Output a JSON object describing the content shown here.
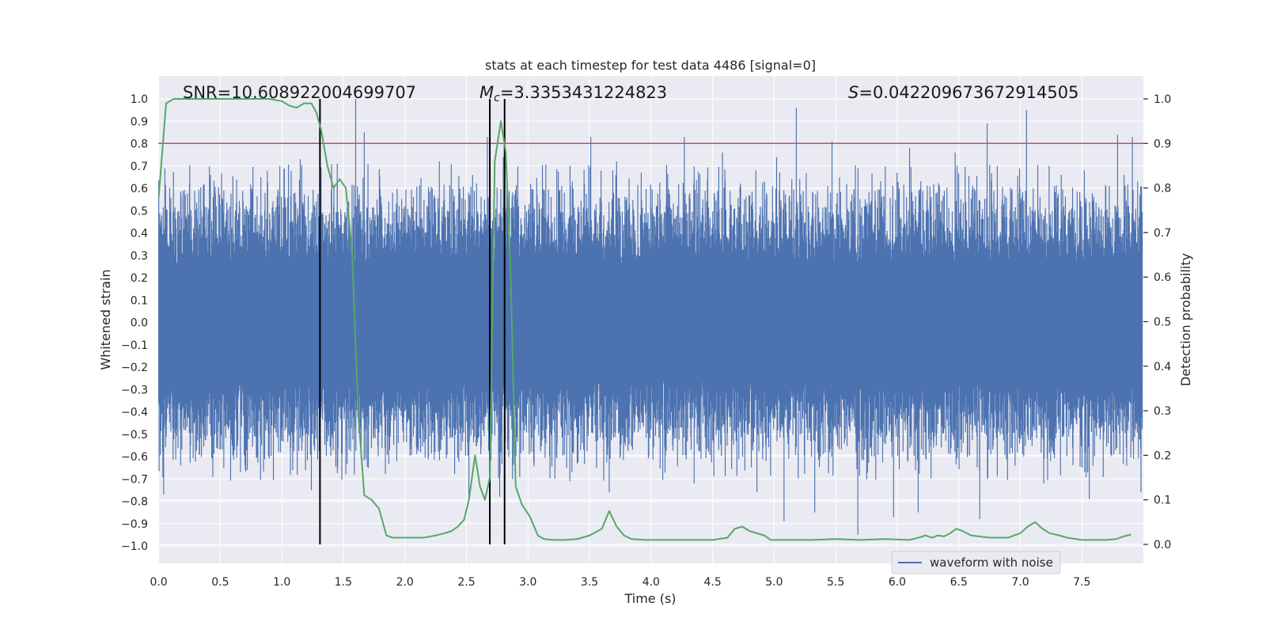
{
  "chart_data": {
    "type": "line",
    "title": "stats at each timestep for test data 4486 [signal=0]",
    "xlabel": "Time (s)",
    "ylabel_left": "Whitened strain",
    "ylabel_right": "Detection probability",
    "xlim": [
      0.0,
      8.0
    ],
    "ylim_left": [
      -1.05,
      1.05
    ],
    "ylim_right": [
      -0.045,
      1.045
    ],
    "x_ticks": [
      0.0,
      0.5,
      1.0,
      1.5,
      2.0,
      2.5,
      3.0,
      3.5,
      4.0,
      4.5,
      5.0,
      5.5,
      6.0,
      6.5,
      7.0,
      7.5
    ],
    "x_tick_labels": [
      "0.0",
      "0.5",
      "1.0",
      "1.5",
      "2.0",
      "2.5",
      "3.0",
      "3.5",
      "4.0",
      "4.5",
      "5.0",
      "5.5",
      "6.0",
      "6.5",
      "7.0",
      "7.5"
    ],
    "y_left_ticks": [
      -1.0,
      -0.9,
      -0.8,
      -0.7,
      -0.6,
      -0.5,
      -0.4,
      -0.3,
      -0.2,
      -0.1,
      0.0,
      0.1,
      0.2,
      0.3,
      0.4,
      0.5,
      0.6,
      0.7,
      0.8,
      0.9,
      1.0
    ],
    "y_left_tick_labels": [
      "−1.0",
      "−0.9",
      "−0.8",
      "−0.7",
      "−0.6",
      "−0.5",
      "−0.4",
      "−0.3",
      "−0.2",
      "−0.1",
      "0.0",
      "0.1",
      "0.2",
      "0.3",
      "0.4",
      "0.5",
      "0.6",
      "0.7",
      "0.8",
      "0.9",
      "1.0"
    ],
    "y_right_ticks": [
      0.0,
      0.1,
      0.2,
      0.3,
      0.4,
      0.5,
      0.6,
      0.7,
      0.8,
      0.9,
      1.0
    ],
    "y_right_tick_labels": [
      "0.0",
      "0.1",
      "0.2",
      "0.3",
      "0.4",
      "0.5",
      "0.6",
      "0.7",
      "0.8",
      "0.9",
      "1.0"
    ],
    "grid": true,
    "legend": {
      "entries": [
        "waveform with noise"
      ],
      "placement": "lower right"
    },
    "annotations": {
      "snr": "SNR=10.608922004699707",
      "mc_symbol": "M",
      "mc_subscript": "c",
      "mc_value": "=3.3353431224823",
      "s_symbol": "S",
      "s_value": "=0.042209673672914505"
    },
    "threshold_line": {
      "axis": "right",
      "value": 0.9,
      "color": "#c44e52"
    },
    "vertical_markers_x": [
      1.31,
      2.69,
      2.81
    ],
    "waveform": {
      "name": "waveform with noise",
      "color": "#4c72b0",
      "axis": "left",
      "envelope": "noise band between about -0.4 and 0.4 with spikes",
      "spikes_x": [
        0.05,
        0.25,
        0.42,
        0.83,
        1.15,
        1.28,
        1.45,
        1.6,
        1.67,
        2.28,
        2.55,
        2.67,
        2.8,
        3.51,
        3.72,
        4.27,
        4.58,
        5.02,
        5.18,
        5.47,
        6.1,
        6.47,
        6.73,
        7.05,
        7.52,
        7.79,
        7.91
      ],
      "spikes_y": [
        0.69,
        0.62,
        0.66,
        0.65,
        0.73,
        0.54,
        0.71,
        1.0,
        0.85,
        0.72,
        0.66,
        0.83,
        0.74,
        0.83,
        0.72,
        0.83,
        0.76,
        0.74,
        0.96,
        0.81,
        0.78,
        0.76,
        0.89,
        0.95,
        0.68,
        0.84,
        0.83
      ],
      "dips_x": [
        0.04,
        0.72,
        1.24,
        1.52,
        2.52,
        2.77,
        3.34,
        3.66,
        4.35,
        4.86,
        5.08,
        5.33,
        5.68,
        5.97,
        6.17,
        6.67,
        7.19,
        7.56,
        7.98
      ],
      "dips_y": [
        -0.77,
        -0.66,
        -0.75,
        -0.68,
        -0.78,
        -0.78,
        -0.71,
        -0.76,
        -0.72,
        -0.76,
        -0.89,
        -0.85,
        -0.95,
        -0.87,
        -0.85,
        -0.88,
        -0.72,
        -0.79,
        -0.76
      ]
    },
    "detection_probability": {
      "color": "#55a868",
      "axis": "right",
      "x": [
        0.0,
        0.06,
        0.12,
        0.3,
        0.5,
        0.7,
        0.9,
        1.0,
        1.06,
        1.12,
        1.18,
        1.24,
        1.28,
        1.32,
        1.37,
        1.42,
        1.47,
        1.52,
        1.57,
        1.62,
        1.67,
        1.73,
        1.79,
        1.85,
        1.9,
        1.95,
        2.05,
        2.15,
        2.25,
        2.32,
        2.38,
        2.43,
        2.48,
        2.52,
        2.57,
        2.61,
        2.65,
        2.69,
        2.73,
        2.78,
        2.82,
        2.86,
        2.9,
        2.95,
        3.02,
        3.08,
        3.13,
        3.2,
        3.3,
        3.4,
        3.5,
        3.6,
        3.66,
        3.72,
        3.78,
        3.84,
        3.95,
        4.2,
        4.5,
        4.62,
        4.68,
        4.74,
        4.8,
        4.86,
        4.92,
        4.97,
        5.02,
        5.1,
        5.3,
        5.5,
        5.7,
        5.9,
        6.1,
        6.17,
        6.23,
        6.28,
        6.33,
        6.38,
        6.43,
        6.48,
        6.53,
        6.6,
        6.75,
        6.9,
        6.95,
        7.0,
        7.06,
        7.12,
        7.18,
        7.24,
        7.32,
        7.38,
        7.5,
        7.7,
        7.78,
        7.84,
        7.9
      ],
      "y": [
        0.78,
        0.99,
        1.0,
        1.0,
        1.0,
        1.0,
        1.0,
        0.995,
        0.985,
        0.98,
        0.99,
        0.99,
        0.97,
        0.93,
        0.85,
        0.8,
        0.82,
        0.8,
        0.66,
        0.3,
        0.11,
        0.1,
        0.08,
        0.02,
        0.015,
        0.015,
        0.015,
        0.015,
        0.02,
        0.025,
        0.03,
        0.04,
        0.055,
        0.1,
        0.2,
        0.13,
        0.1,
        0.15,
        0.86,
        0.95,
        0.88,
        0.6,
        0.13,
        0.09,
        0.06,
        0.02,
        0.012,
        0.01,
        0.01,
        0.012,
        0.02,
        0.035,
        0.075,
        0.04,
        0.02,
        0.012,
        0.01,
        0.01,
        0.01,
        0.015,
        0.035,
        0.04,
        0.03,
        0.025,
        0.02,
        0.01,
        0.01,
        0.01,
        0.01,
        0.012,
        0.01,
        0.012,
        0.01,
        0.015,
        0.02,
        0.015,
        0.02,
        0.018,
        0.025,
        0.035,
        0.03,
        0.02,
        0.015,
        0.015,
        0.02,
        0.025,
        0.04,
        0.05,
        0.035,
        0.025,
        0.02,
        0.015,
        0.01,
        0.01,
        0.012,
        0.018,
        0.022
      ]
    }
  }
}
